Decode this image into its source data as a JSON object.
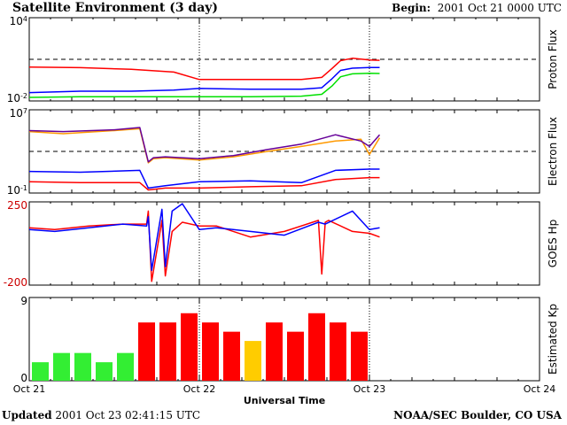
{
  "header": {
    "title": "Satellite Environment (3 day)",
    "begin_label": "Begin:",
    "begin_value": "2001 Oct 21 0000 UTC"
  },
  "footer": {
    "updated_label": "Updated",
    "updated_value": "2001 Oct 23 02:41:15 UTC",
    "credit": "NOAA/SEC Boulder, CO USA"
  },
  "x_axis": {
    "label": "Universal Time",
    "ticks": [
      "Oct 21",
      "Oct 22",
      "Oct 23",
      "Oct 24"
    ],
    "range_days": [
      0,
      3
    ],
    "day_markers": [
      1,
      2
    ]
  },
  "chart_data": [
    {
      "type": "line",
      "panel": "proton-flux",
      "ylabel": "Proton Flux",
      "yscale": "log",
      "ylim": [
        0.01,
        10000
      ],
      "ytick_labels": [
        "10^4",
        "10^-2"
      ],
      "threshold": 10,
      "series": [
        {
          "color": "#ff0000",
          "x": [
            0,
            0.3,
            0.6,
            0.85,
            1.0,
            1.3,
            1.6,
            1.72,
            1.78,
            1.83,
            1.9,
            2.0,
            2.06
          ],
          "y": [
            2.8,
            2.5,
            1.9,
            1.2,
            0.35,
            0.35,
            0.35,
            0.5,
            2.2,
            8,
            12,
            9,
            8.5
          ]
        },
        {
          "color": "#0000ff",
          "x": [
            0,
            0.3,
            0.6,
            0.85,
            1.0,
            1.3,
            1.6,
            1.72,
            1.78,
            1.83,
            1.9,
            2.0,
            2.06
          ],
          "y": [
            0.04,
            0.05,
            0.05,
            0.06,
            0.08,
            0.07,
            0.07,
            0.09,
            0.4,
            1.6,
            2.3,
            2.6,
            2.6
          ]
        },
        {
          "color": "#00e000",
          "x": [
            0,
            0.3,
            0.6,
            0.85,
            1.0,
            1.3,
            1.6,
            1.72,
            1.78,
            1.83,
            1.9,
            2.0,
            2.06
          ],
          "y": [
            0.018,
            0.02,
            0.02,
            0.02,
            0.02,
            0.02,
            0.022,
            0.03,
            0.12,
            0.55,
            0.9,
            1.0,
            0.95
          ]
        }
      ]
    },
    {
      "type": "line",
      "panel": "electron-flux",
      "ylabel": "Electron Flux",
      "yscale": "log",
      "ylim": [
        0.1,
        10000000
      ],
      "ytick_labels": [
        "10^7",
        "10^-1"
      ],
      "threshold": 1000,
      "series": [
        {
          "color": "#ff9900",
          "x": [
            0,
            0.2,
            0.5,
            0.65,
            0.7,
            0.73,
            0.8,
            1.0,
            1.2,
            1.4,
            1.6,
            1.8,
            1.95,
            2.0,
            2.06
          ],
          "y": [
            80000,
            50000,
            100000,
            150000,
            80,
            200,
            250,
            150,
            300,
            1000,
            3000,
            10000,
            15000,
            500,
            20000
          ]
        },
        {
          "color": "#660099",
          "x": [
            0,
            0.2,
            0.5,
            0.65,
            0.7,
            0.73,
            0.8,
            1.0,
            1.2,
            1.4,
            1.6,
            1.8,
            1.95,
            2.0,
            2.06
          ],
          "y": [
            100000,
            80000,
            120000,
            200000,
            100,
            250,
            300,
            200,
            400,
            1500,
            5000,
            40000,
            10000,
            3000,
            40000
          ]
        },
        {
          "color": "#0000ff",
          "x": [
            0,
            0.3,
            0.65,
            0.7,
            0.8,
            1.0,
            1.3,
            1.6,
            1.8,
            2.0,
            2.06
          ],
          "y": [
            12,
            10,
            15,
            0.3,
            0.5,
            1.2,
            1.5,
            1,
            15,
            20,
            20
          ]
        },
        {
          "color": "#ff0000",
          "x": [
            0,
            0.3,
            0.65,
            0.7,
            0.8,
            1.0,
            1.3,
            1.6,
            1.8,
            2.0,
            2.06
          ],
          "y": [
            1.2,
            1,
            1,
            0.2,
            0.3,
            0.3,
            0.4,
            0.5,
            2,
            3,
            3
          ]
        }
      ]
    },
    {
      "type": "line",
      "panel": "goes-hp",
      "ylabel": "GOES Hp",
      "ylim": [
        -200,
        250
      ],
      "ytick_labels": [
        "250",
        "-200"
      ],
      "series": [
        {
          "color": "#ff0000",
          "x": [
            0,
            0.15,
            0.35,
            0.55,
            0.69,
            0.7,
            0.72,
            0.78,
            0.8,
            0.84,
            0.9,
            1.0,
            1.1,
            1.3,
            1.5,
            1.7,
            1.72,
            1.74,
            1.76,
            1.9,
            2.0,
            2.06
          ],
          "y": [
            110,
            100,
            120,
            130,
            130,
            200,
            -180,
            150,
            -150,
            90,
            140,
            120,
            120,
            60,
            90,
            150,
            -140,
            140,
            150,
            90,
            80,
            60
          ]
        },
        {
          "color": "#0000ff",
          "x": [
            0,
            0.15,
            0.35,
            0.55,
            0.69,
            0.7,
            0.72,
            0.78,
            0.8,
            0.84,
            0.9,
            1.0,
            1.1,
            1.3,
            1.5,
            1.7,
            1.74,
            1.9,
            2.0,
            2.06
          ],
          "y": [
            100,
            90,
            110,
            130,
            120,
            170,
            -120,
            210,
            -100,
            200,
            240,
            100,
            110,
            90,
            70,
            140,
            130,
            200,
            100,
            110
          ]
        }
      ]
    },
    {
      "type": "bar",
      "panel": "estimated-kp",
      "ylabel": "Estimated Kp",
      "ylim": [
        0,
        9
      ],
      "ytick_labels": [
        "9",
        "0"
      ],
      "bar_width_days": 0.125,
      "values": [
        2,
        3,
        3,
        2,
        3,
        6.3,
        6.3,
        7.3,
        6.3,
        5.3,
        4.3,
        6.3,
        5.3,
        7.3,
        6.3,
        5.3
      ],
      "colors": [
        "#33ee33",
        "#33ee33",
        "#33ee33",
        "#33ee33",
        "#33ee33",
        "#ff0000",
        "#ff0000",
        "#ff0000",
        "#ff0000",
        "#ff0000",
        "#ffcc00",
        "#ff0000",
        "#ff0000",
        "#ff0000",
        "#ff0000",
        "#ff0000"
      ]
    }
  ]
}
